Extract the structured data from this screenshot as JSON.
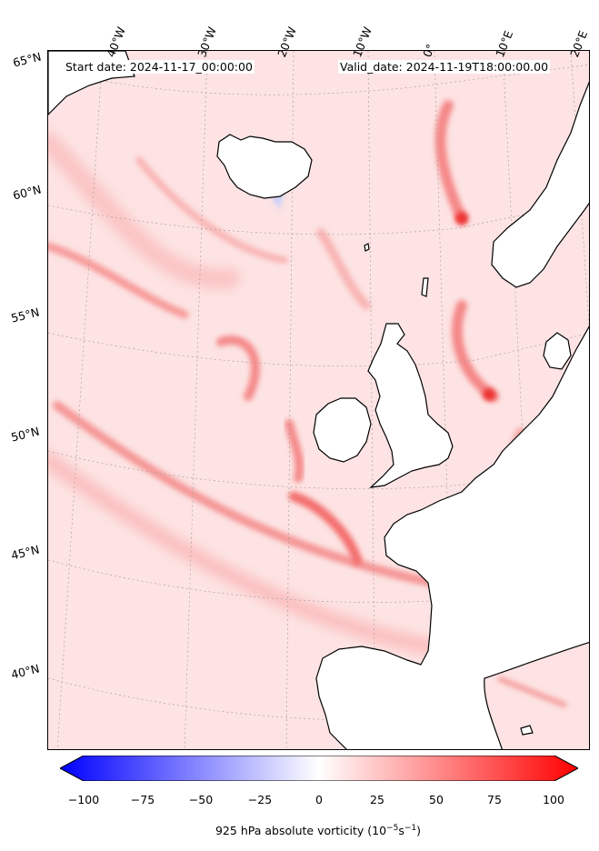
{
  "header": {
    "start_date": "Start date: 2024-11-17_00:00:00",
    "valid_date": "Valid_date: 2024-11-19T18:00:00.00"
  },
  "map": {
    "longitude_labels": [
      "40°W",
      "30°W",
      "20°W",
      "10°W",
      "0°",
      "10°E",
      "20°E"
    ],
    "latitude_labels": [
      "65°N",
      "60°N",
      "55°N",
      "50°N",
      "45°N",
      "40°N"
    ],
    "land_fill": "#ffffff",
    "coastline_color": "#000000"
  },
  "colorbar": {
    "tick_labels": [
      "−100",
      "−75",
      "−50",
      "−25",
      "0",
      "25",
      "50",
      "75",
      "100"
    ],
    "label_prefix": "925 hPa absolute vorticity (10",
    "label_exp1": "−5",
    "label_mid": "s",
    "label_exp2": "−1",
    "label_suffix": ")",
    "color_min": "#0000ff",
    "color_mid": "#ffffff",
    "color_max": "#ff0000"
  }
}
